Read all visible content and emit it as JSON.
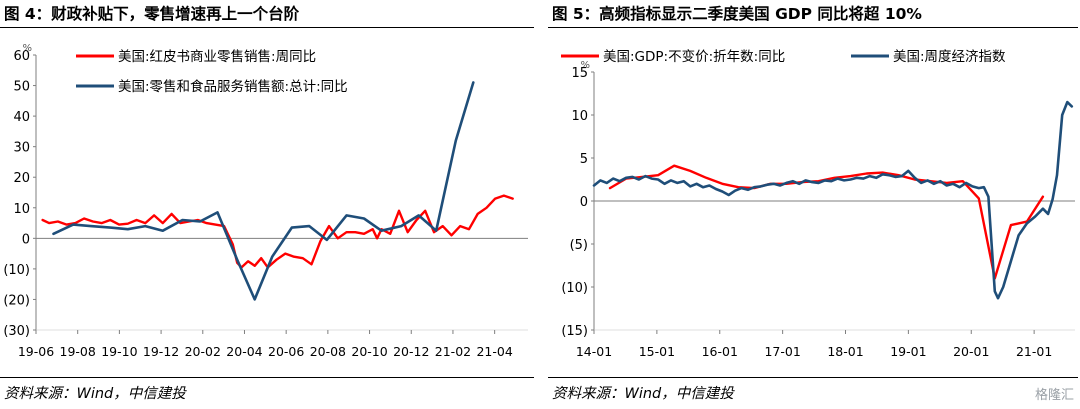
{
  "panels": [
    {
      "title": "图 4：财政补贴下，零售增速再上一个台阶",
      "source": "资料来源：Wind，中信建投",
      "chart_data": {
        "type": "line",
        "y_unit": "%",
        "ylim": [
          -30,
          60
        ],
        "yticks": [
          60,
          50,
          40,
          30,
          20,
          10,
          0,
          -10,
          -20,
          -30
        ],
        "ytick_labels": [
          "60",
          "50",
          "40",
          "30",
          "20",
          "10",
          "0",
          "(10)",
          "(20)",
          "(30)"
        ],
        "x_range": [
          2019.37,
          2021.62
        ],
        "xtick_labels": [
          "19-06",
          "19-08",
          "19-10",
          "19-12",
          "20-02",
          "20-04",
          "20-06",
          "20-08",
          "20-10",
          "20-12",
          "21-02",
          "21-04"
        ],
        "series": [
          {
            "name": "美国:红皮书商业零售销售:周同比",
            "color": "#ff0000",
            "x": [
              2019.4,
              2019.43,
              2019.47,
              2019.51,
              2019.55,
              2019.59,
              2019.63,
              2019.67,
              2019.71,
              2019.75,
              2019.79,
              2019.83,
              2019.87,
              2019.91,
              2019.95,
              2019.99,
              2020.03,
              2020.07,
              2020.11,
              2020.15,
              2020.19,
              2020.23,
              2020.27,
              2020.29,
              2020.31,
              2020.34,
              2020.37,
              2020.4,
              2020.43,
              2020.47,
              2020.51,
              2020.55,
              2020.59,
              2020.63,
              2020.67,
              2020.71,
              2020.75,
              2020.79,
              2020.83,
              2020.87,
              2020.91,
              2020.93,
              2020.95,
              2020.99,
              2021.03,
              2021.07,
              2021.11,
              2021.15,
              2021.19,
              2021.23,
              2021.27,
              2021.31,
              2021.35,
              2021.39,
              2021.43,
              2021.47,
              2021.51,
              2021.55
            ],
            "values": [
              6,
              5,
              5.5,
              4.5,
              5,
              6.5,
              5.5,
              5,
              6,
              4.5,
              4.8,
              6,
              5,
              7.5,
              5,
              8,
              5,
              5.5,
              6,
              5,
              4.5,
              4,
              -2,
              -8,
              -9.5,
              -7.5,
              -9,
              -6.5,
              -9.5,
              -7,
              -5,
              -6,
              -6.5,
              -8.5,
              -1,
              4,
              0,
              2,
              2,
              1.5,
              3,
              0,
              3,
              1.5,
              9,
              2,
              6,
              9,
              2,
              4,
              1,
              4,
              3,
              8,
              10,
              13,
              14,
              13
            ]
          },
          {
            "name": "美国:零售和食品服务销售额:总计:同比",
            "color": "#1f4e79",
            "x": [
              2019.45,
              2019.54,
              2019.62,
              2019.71,
              2019.79,
              2019.87,
              2019.95,
              2020.04,
              2020.12,
              2020.2,
              2020.29,
              2020.37,
              2020.45,
              2020.54,
              2020.62,
              2020.7,
              2020.79,
              2020.87,
              2020.95,
              2021.04,
              2021.12,
              2021.2,
              2021.29,
              2021.37
            ],
            "values": [
              1.5,
              4.5,
              4,
              3.5,
              3,
              4,
              2.5,
              6,
              5.5,
              8.5,
              -7,
              -20,
              -6,
              3.5,
              4,
              -0.5,
              7.5,
              6.5,
              2.5,
              4,
              7.5,
              2.5,
              32,
              51
            ]
          }
        ]
      }
    },
    {
      "title": "图 5：高频指标显示二季度美国 GDP 同比将超 10%",
      "source": "资料来源：Wind，中信建投",
      "chart_data": {
        "type": "line",
        "y_unit": "%",
        "ylim": [
          -15,
          15
        ],
        "yticks": [
          15,
          10,
          5,
          0,
          -5,
          -10,
          -15
        ],
        "ytick_labels": [
          "15",
          "10",
          "5",
          "0",
          "(5)",
          "(10)",
          "(15)"
        ],
        "x_range": [
          2014.0,
          2021.5
        ],
        "xtick_labels": [
          "14-01",
          "15-01",
          "16-01",
          "17-01",
          "18-01",
          "19-01",
          "20-01",
          "21-01"
        ],
        "series": [
          {
            "name": "美国:GDP:不变价:折年数:同比",
            "color": "#ff0000",
            "x": [
              2014.25,
              2014.5,
              2014.75,
              2015.0,
              2015.25,
              2015.5,
              2015.75,
              2016.0,
              2016.25,
              2016.5,
              2016.75,
              2017.0,
              2017.25,
              2017.5,
              2017.75,
              2018.0,
              2018.25,
              2018.5,
              2018.75,
              2019.0,
              2019.25,
              2019.5,
              2019.75,
              2020.0,
              2020.25,
              2020.5,
              2020.75,
              2021.0,
              2021.25
            ],
            "values": [
              1.5,
              2.6,
              2.8,
              3.0,
              4.1,
              3.5,
              2.7,
              2.0,
              1.6,
              1.5,
              2.0,
              2.0,
              2.2,
              2.3,
              2.7,
              2.9,
              3.2,
              3.3,
              3.0,
              2.5,
              2.3,
              2.1,
              2.3,
              0.3,
              -9.0,
              -2.8,
              -2.4,
              0.5,
              null
            ]
          },
          {
            "name": "美国:周度经济指数",
            "color": "#1f4e79",
            "x": [
              2014.0,
              2014.1,
              2014.2,
              2014.3,
              2014.4,
              2014.5,
              2014.6,
              2014.7,
              2014.8,
              2014.9,
              2015.0,
              2015.1,
              2015.2,
              2015.3,
              2015.4,
              2015.5,
              2015.6,
              2015.7,
              2015.8,
              2015.9,
              2016.0,
              2016.1,
              2016.2,
              2016.3,
              2016.4,
              2016.5,
              2016.6,
              2016.7,
              2016.8,
              2016.9,
              2017.0,
              2017.1,
              2017.2,
              2017.3,
              2017.4,
              2017.5,
              2017.6,
              2017.7,
              2017.8,
              2017.9,
              2018.0,
              2018.1,
              2018.2,
              2018.3,
              2018.4,
              2018.5,
              2018.6,
              2018.7,
              2018.8,
              2018.9,
              2019.0,
              2019.1,
              2019.2,
              2019.3,
              2019.4,
              2019.5,
              2019.6,
              2019.7,
              2019.8,
              2019.9,
              2020.0,
              2020.08,
              2020.15,
              2020.2,
              2020.25,
              2020.3,
              2020.38,
              2020.5,
              2020.62,
              2020.75,
              2020.88,
              2021.0,
              2021.08,
              2021.15,
              2021.22,
              2021.3,
              2021.38,
              2021.45
            ],
            "values": [
              1.8,
              2.4,
              2.1,
              2.6,
              2.3,
              2.7,
              2.8,
              2.5,
              2.9,
              2.6,
              2.5,
              2.0,
              2.4,
              2.1,
              2.3,
              1.7,
              2.0,
              1.6,
              1.8,
              1.4,
              1.1,
              0.7,
              1.2,
              1.5,
              1.3,
              1.6,
              1.7,
              1.9,
              2.0,
              1.8,
              2.1,
              2.3,
              2.0,
              2.4,
              2.2,
              2.1,
              2.4,
              2.3,
              2.6,
              2.4,
              2.5,
              2.7,
              2.6,
              2.9,
              2.7,
              3.1,
              3.0,
              2.8,
              2.9,
              3.5,
              2.7,
              2.1,
              2.4,
              2.0,
              2.3,
              1.8,
              2.0,
              1.6,
              2.1,
              1.7,
              1.5,
              1.6,
              0.5,
              -5.0,
              -10.5,
              -11.3,
              -10.0,
              -7.0,
              -4.0,
              -2.6,
              -1.8,
              -0.9,
              -1.5,
              0.2,
              3.0,
              10.0,
              11.5,
              11.0
            ]
          }
        ]
      }
    }
  ],
  "watermark": "格隆汇"
}
